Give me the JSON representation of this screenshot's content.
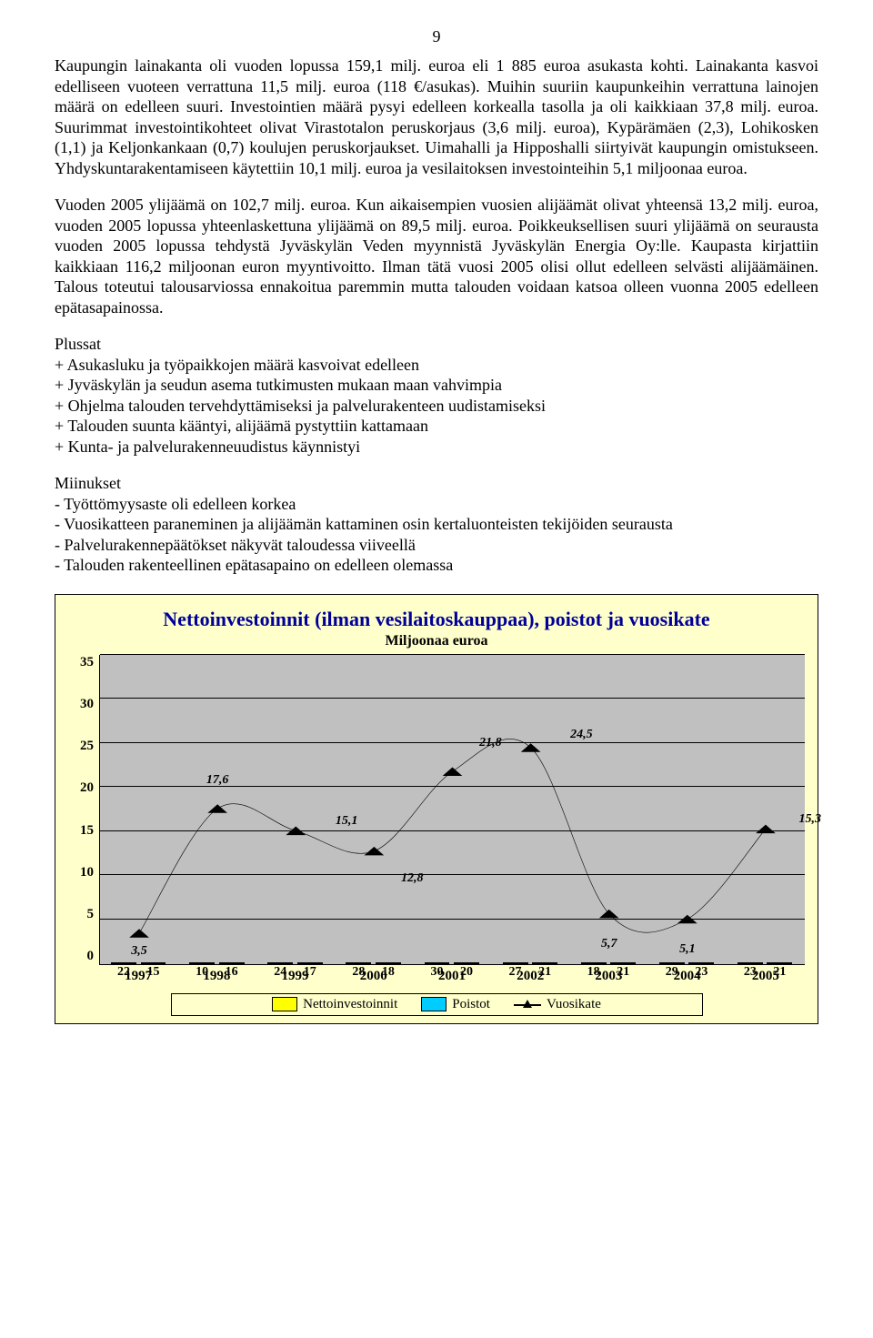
{
  "page_number": "9",
  "para1": "Kaupungin lainakanta oli vuoden lopussa 159,1 milj. euroa eli 1 885 euroa asukasta kohti. Lainakanta kasvoi edelliseen vuoteen verrattuna 11,5 milj. euroa (118 €/asukas). Muihin suuriin kaupunkeihin verrattuna lainojen määrä on edelleen suuri. Investointien määrä pysyi edelleen korkealla tasolla ja oli kaikkiaan 37,8 milj. euroa. Suurimmat investointikohteet olivat Virastotalon peruskorjaus (3,6 milj. euroa), Kypärämäen (2,3), Lohikosken (1,1) ja Keljonkankaan (0,7) koulujen peruskorjaukset. Uimahalli ja Hipposhalli siirtyivät kaupungin omistukseen. Yhdyskuntarakentamiseen käytettiin 10,1 milj. euroa ja vesilaitoksen investointeihin 5,1 miljoonaa euroa.",
  "para2": "Vuoden 2005 ylijäämä on 102,7 milj. euroa. Kun aikaisempien vuosien alijäämät olivat yhteensä 13,2 milj. euroa, vuoden 2005 lopussa yhteenlaskettuna ylijäämä on 89,5 milj. euroa. Poikkeuksellisen suuri ylijäämä on seurausta vuoden 2005 lopussa tehdystä Jyväskylän Veden myynnistä Jyväskylän Energia Oy:lle. Kaupasta kirjattiin kaikkiaan 116,2 miljoonan euron myyntivoitto. Ilman tätä vuosi 2005 olisi ollut edelleen selvästi alijäämäinen. Talous toteutui talousarviossa ennakoitua paremmin mutta talouden voidaan katsoa olleen vuonna 2005 edelleen epätasapainossa.",
  "plus_header": "Plussat",
  "plus_items": [
    "+ Asukasluku ja työpaikkojen määrä kasvoivat edelleen",
    "+ Jyväskylän ja seudun asema tutkimusten mukaan maan vahvimpia",
    "+ Ohjelma talouden tervehdyttämiseksi ja palvelurakenteen uudistamiseksi",
    "+ Talouden suunta kääntyi, alijäämä pystyttiin kattamaan",
    "+ Kunta- ja palvelurakenneuudistus käynnistyi"
  ],
  "minus_header": "Miinukset",
  "minus_items": [
    "- Työttömyysaste oli edelleen korkea",
    "- Vuosikatteen paraneminen ja alijäämän kattaminen osin kertaluonteisten    tekijöiden seurausta",
    "- Palvelurakennepäätökset näkyvät taloudessa viiveellä",
    "- Talouden rakenteellinen epätasapaino on edelleen olemassa"
  ],
  "chart": {
    "title": "Nettoinvestoinnit (ilman vesilaitoskauppaa), poistot ja vuosikate",
    "subtitle": "Miljoonaa euroa",
    "ymax": 35,
    "yticks": [
      "35",
      "30",
      "25",
      "20",
      "15",
      "10",
      "5",
      "0"
    ],
    "years": [
      "1997",
      "1998",
      "1999",
      "2000",
      "2001",
      "2002",
      "2003",
      "2004",
      "2005"
    ],
    "netto": [
      22,
      10,
      24,
      28,
      30,
      27,
      18,
      29,
      23
    ],
    "poistot": [
      15,
      16,
      17,
      18,
      20,
      21,
      21,
      23,
      21
    ],
    "vuosikate": [
      3.5,
      17.6,
      15.1,
      12.8,
      21.8,
      24.5,
      5.7,
      5.1,
      15.3
    ],
    "netto_labels": [
      "22",
      "10",
      "24",
      "28",
      "30",
      "27",
      "18",
      "29",
      "23"
    ],
    "poistot_labels": [
      "15",
      "16",
      "17",
      "18",
      "20",
      "21",
      "21",
      "23",
      "21"
    ],
    "vuosikate_labels": [
      "3,5",
      "17,6",
      "15,1",
      "12,8",
      "21,8",
      "24,5",
      "5,7",
      "5,1",
      "15,3"
    ],
    "colors": {
      "plot_bg": "#c0c0c0",
      "box_bg": "#ffffcc",
      "netto": "#ffff00",
      "poistot": "#00ccff",
      "line": "#000000",
      "title": "#000099"
    },
    "legend": [
      "Nettoinvestoinnit",
      "Poistot",
      "Vuosikate"
    ]
  }
}
